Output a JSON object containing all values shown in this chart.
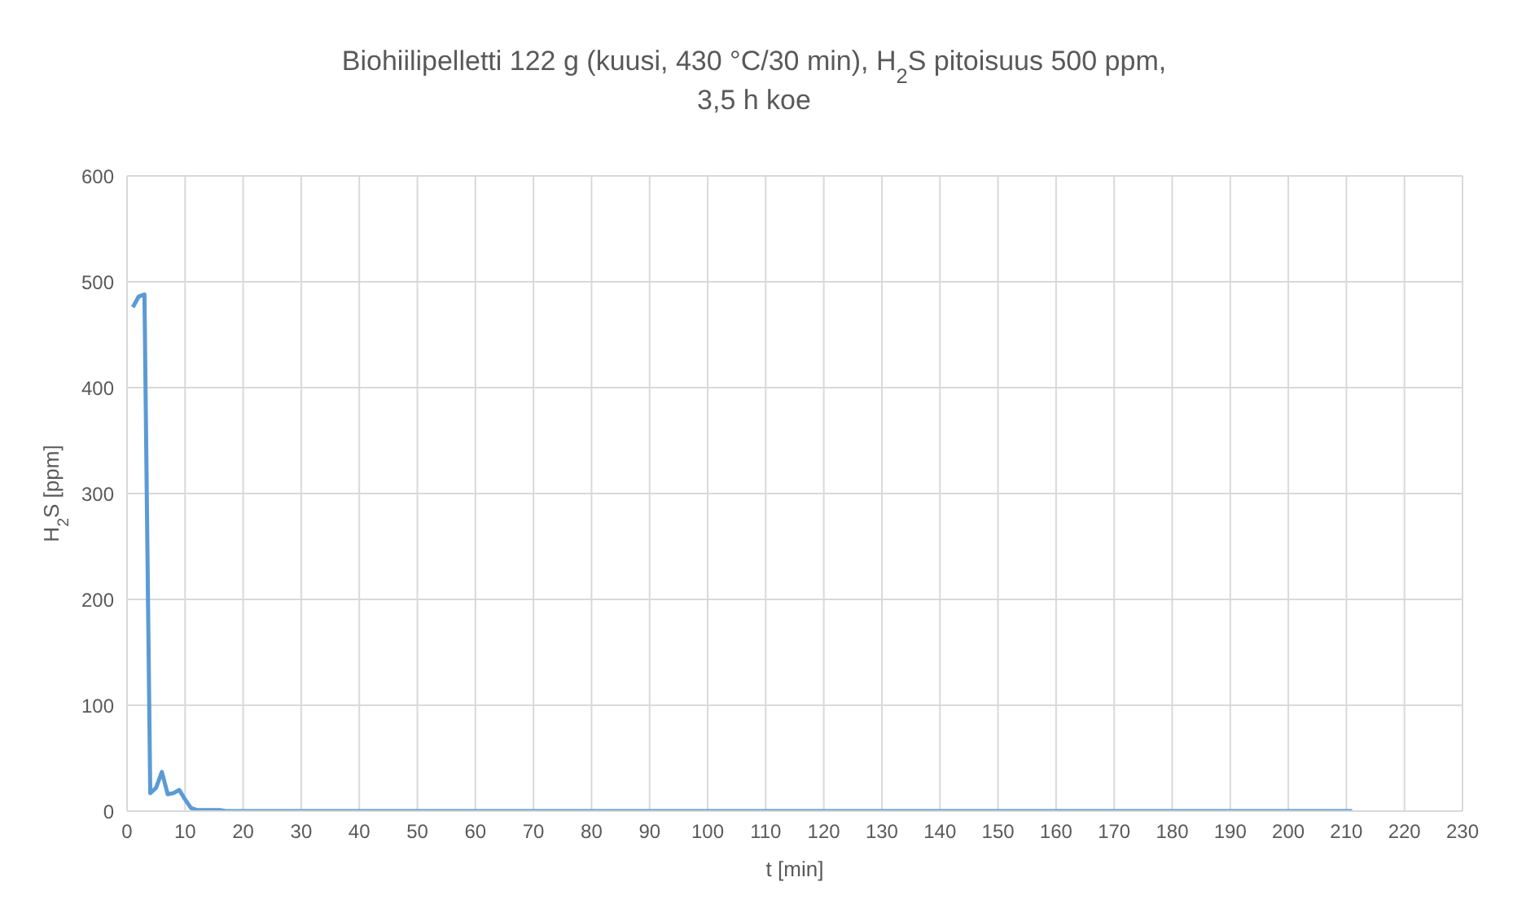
{
  "chart_data": {
    "type": "line",
    "title": "Biohiilipelletti 122 g (kuusi, 430 °C/30 min), H$_{2}$S pitoisuus 500 ppm,\n3,5 h koe",
    "xlabel": "t [min]",
    "ylabel": "H$_{2}$S [ppm]",
    "series": [
      {
        "color": "#5b9bd5",
        "x": [
          1,
          2,
          3,
          4,
          5,
          6,
          7,
          8,
          9,
          10,
          11,
          12,
          14,
          16,
          17,
          20,
          30,
          50,
          100,
          150,
          200,
          211
        ],
        "values": [
          476,
          486,
          488,
          17,
          22,
          37,
          16,
          17,
          20,
          11,
          3,
          1,
          1,
          1,
          0,
          0,
          0,
          0,
          0,
          0,
          0,
          0
        ]
      }
    ],
    "xlim": [
      0,
      230
    ],
    "xticks": [
      0,
      10,
      20,
      30,
      40,
      50,
      60,
      70,
      80,
      90,
      100,
      110,
      120,
      130,
      140,
      150,
      160,
      170,
      180,
      190,
      200,
      210,
      220,
      230
    ],
    "ylim": [
      0,
      600
    ],
    "yticks": [
      0,
      100,
      200,
      300,
      400,
      500,
      600
    ],
    "grid": true,
    "legend": false,
    "marker": "none",
    "line_style": "solid"
  }
}
